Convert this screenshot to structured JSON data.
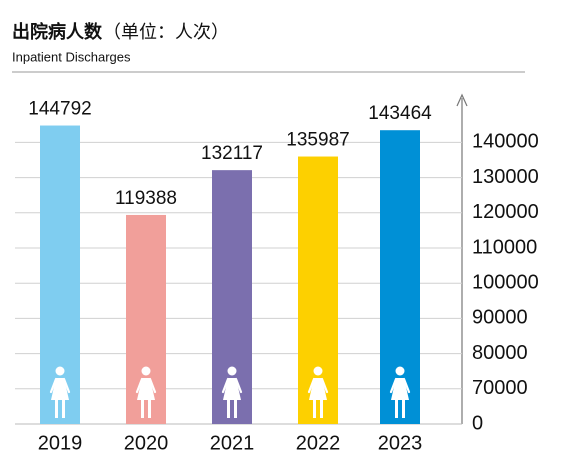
{
  "chart_data": {
    "type": "bar",
    "title": "出院病人数",
    "unit": "（单位：人次）",
    "subtitle": "Inpatient Discharges",
    "categories": [
      "2019",
      "2020",
      "2021",
      "2022",
      "2023"
    ],
    "values": [
      144792,
      119388,
      132117,
      135987,
      143464
    ],
    "colors": [
      "#7fcdf0",
      "#f19f9a",
      "#7b6fae",
      "#fdd000",
      "#0090d6"
    ],
    "ylim": [
      0,
      150000
    ],
    "yticks": [
      0,
      70000,
      80000,
      90000,
      100000,
      110000,
      120000,
      130000,
      140000
    ],
    "axis_break": true,
    "grid": true
  }
}
